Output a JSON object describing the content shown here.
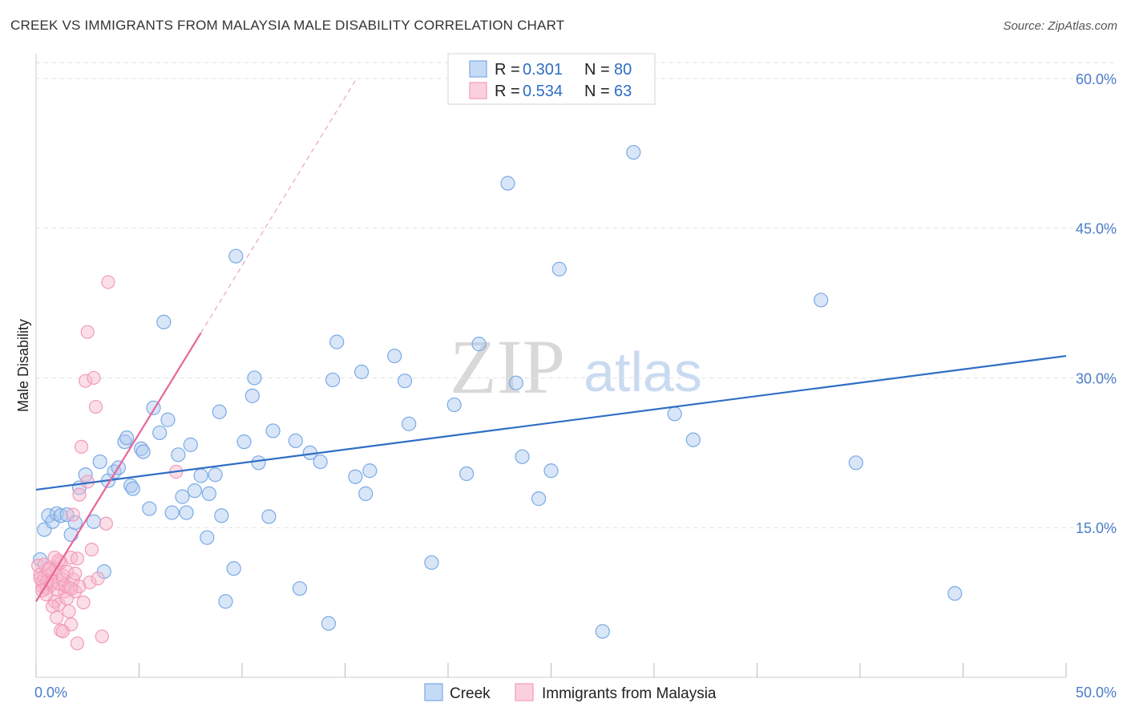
{
  "title": "CREEK VS IMMIGRANTS FROM MALAYSIA MALE DISABILITY CORRELATION CHART",
  "source": "Source: ZipAtlas.com",
  "watermark": {
    "zip": "ZIP",
    "atlas": "atlas"
  },
  "legend": {
    "r_label": "R =",
    "n_label": "N =",
    "rows": [
      {
        "r": "0.301",
        "n": "80"
      },
      {
        "r": "0.534",
        "n": "63"
      }
    ]
  },
  "chart_data": {
    "type": "scatter",
    "ylabel": "Male Disability",
    "xlim": [
      0,
      50
    ],
    "ylim": [
      0,
      62
    ],
    "x_ticks": [
      "0.0%",
      "50.0%"
    ],
    "y_ticks": [
      {
        "value": 15,
        "label": "15.0%"
      },
      {
        "value": 30,
        "label": "30.0%"
      },
      {
        "value": 45,
        "label": "45.0%"
      },
      {
        "value": 60,
        "label": "60.0%"
      }
    ],
    "grid": true,
    "legend_position": "top-center",
    "colors": {
      "creek": "#7aaae6",
      "creek_line": "#2f6ec4",
      "malaysia": "#f39ab8",
      "malaysia_line": "#e8649a"
    },
    "series": [
      {
        "name": "Creek",
        "trend": {
          "x": [
            0,
            50
          ],
          "y": [
            18.8,
            32.2
          ]
        },
        "points": [
          [
            0.2,
            11.8
          ],
          [
            0.4,
            14.8
          ],
          [
            0.6,
            16.2
          ],
          [
            0.8,
            15.6
          ],
          [
            1.0,
            16.4
          ],
          [
            1.2,
            16.2
          ],
          [
            1.5,
            16.3
          ],
          [
            1.7,
            14.3
          ],
          [
            1.9,
            15.5
          ],
          [
            2.1,
            19.0
          ],
          [
            2.4,
            20.3
          ],
          [
            2.8,
            15.6
          ],
          [
            3.1,
            21.6
          ],
          [
            3.3,
            10.6
          ],
          [
            3.5,
            19.7
          ],
          [
            3.8,
            20.6
          ],
          [
            4.0,
            21.0
          ],
          [
            4.3,
            23.6
          ],
          [
            4.4,
            24.0
          ],
          [
            4.6,
            19.2
          ],
          [
            4.7,
            18.9
          ],
          [
            5.1,
            22.9
          ],
          [
            5.2,
            22.6
          ],
          [
            5.5,
            16.9
          ],
          [
            5.7,
            27.0
          ],
          [
            6.0,
            24.5
          ],
          [
            6.2,
            35.6
          ],
          [
            6.4,
            25.8
          ],
          [
            6.6,
            16.5
          ],
          [
            6.9,
            22.3
          ],
          [
            7.1,
            18.1
          ],
          [
            7.3,
            16.5
          ],
          [
            7.5,
            23.3
          ],
          [
            7.7,
            18.7
          ],
          [
            8.0,
            20.2
          ],
          [
            8.3,
            14.0
          ],
          [
            8.4,
            18.4
          ],
          [
            8.7,
            20.3
          ],
          [
            8.9,
            26.6
          ],
          [
            9.2,
            7.6
          ],
          [
            9.6,
            10.9
          ],
          [
            9.7,
            42.2
          ],
          [
            10.1,
            23.6
          ],
          [
            10.5,
            28.2
          ],
          [
            10.6,
            30.0
          ],
          [
            10.8,
            21.5
          ],
          [
            11.3,
            16.1
          ],
          [
            11.5,
            24.7
          ],
          [
            12.6,
            23.7
          ],
          [
            12.8,
            8.9
          ],
          [
            13.3,
            22.5
          ],
          [
            13.8,
            21.6
          ],
          [
            14.2,
            5.4
          ],
          [
            14.4,
            29.8
          ],
          [
            14.6,
            33.6
          ],
          [
            15.5,
            20.1
          ],
          [
            15.8,
            30.6
          ],
          [
            16.0,
            18.4
          ],
          [
            16.2,
            20.7
          ],
          [
            17.4,
            32.2
          ],
          [
            17.9,
            29.7
          ],
          [
            18.1,
            25.4
          ],
          [
            19.2,
            11.5
          ],
          [
            20.3,
            27.3
          ],
          [
            20.9,
            20.4
          ],
          [
            21.5,
            33.4
          ],
          [
            22.9,
            49.5
          ],
          [
            23.3,
            29.5
          ],
          [
            23.6,
            22.1
          ],
          [
            24.4,
            17.9
          ],
          [
            25.0,
            20.7
          ],
          [
            25.4,
            40.9
          ],
          [
            27.5,
            4.6
          ],
          [
            29.0,
            52.6
          ],
          [
            31.0,
            26.4
          ],
          [
            31.9,
            23.8
          ],
          [
            38.1,
            37.8
          ],
          [
            39.8,
            21.5
          ],
          [
            44.6,
            8.4
          ],
          [
            9.0,
            16.2
          ]
        ]
      },
      {
        "name": "Immigrants from Malaysia",
        "trend": {
          "x": [
            0,
            8
          ],
          "y": [
            7.6,
            34.5
          ],
          "ext_x": [
            8,
            15.5
          ],
          "ext_y": [
            34.5,
            59.8
          ]
        },
        "points": [
          [
            0.1,
            11.2
          ],
          [
            0.2,
            10.3
          ],
          [
            0.3,
            9.6
          ],
          [
            0.3,
            9.1
          ],
          [
            0.4,
            10.0
          ],
          [
            0.4,
            11.3
          ],
          [
            0.5,
            9.4
          ],
          [
            0.5,
            8.9
          ],
          [
            0.6,
            10.2
          ],
          [
            0.6,
            9.7
          ],
          [
            0.7,
            11.0
          ],
          [
            0.7,
            9.2
          ],
          [
            0.8,
            10.5
          ],
          [
            0.8,
            9.6
          ],
          [
            0.9,
            12.0
          ],
          [
            0.9,
            7.6
          ],
          [
            1.0,
            8.8
          ],
          [
            1.0,
            10.9
          ],
          [
            1.1,
            9.4
          ],
          [
            1.1,
            7.3
          ],
          [
            1.2,
            11.5
          ],
          [
            1.2,
            4.7
          ],
          [
            1.3,
            9.8
          ],
          [
            1.3,
            10.2
          ],
          [
            1.4,
            8.6
          ],
          [
            1.4,
            9.2
          ],
          [
            1.5,
            7.9
          ],
          [
            1.5,
            10.6
          ],
          [
            1.6,
            6.6
          ],
          [
            1.6,
            9.0
          ],
          [
            1.7,
            12.0
          ],
          [
            1.7,
            5.3
          ],
          [
            1.8,
            16.3
          ],
          [
            1.8,
            9.8
          ],
          [
            1.9,
            10.4
          ],
          [
            1.9,
            8.6
          ],
          [
            2.0,
            11.9
          ],
          [
            2.0,
            3.4
          ],
          [
            2.1,
            9.1
          ],
          [
            2.1,
            18.3
          ],
          [
            2.2,
            23.1
          ],
          [
            2.3,
            7.5
          ],
          [
            2.4,
            29.7
          ],
          [
            2.5,
            34.6
          ],
          [
            2.5,
            19.6
          ],
          [
            2.6,
            9.5
          ],
          [
            2.7,
            12.8
          ],
          [
            2.8,
            30.0
          ],
          [
            2.9,
            27.1
          ],
          [
            3.0,
            9.9
          ],
          [
            3.2,
            4.1
          ],
          [
            3.4,
            15.4
          ],
          [
            3.5,
            39.6
          ],
          [
            6.8,
            20.6
          ],
          [
            0.5,
            8.3
          ],
          [
            0.8,
            7.1
          ],
          [
            1.1,
            11.7
          ],
          [
            1.3,
            4.6
          ],
          [
            0.2,
            9.9
          ],
          [
            0.3,
            8.7
          ],
          [
            1.0,
            6.0
          ],
          [
            1.7,
            8.9
          ],
          [
            0.6,
            10.8
          ]
        ]
      }
    ]
  },
  "bottom_legend": [
    "Creek",
    "Immigrants from Malaysia"
  ]
}
